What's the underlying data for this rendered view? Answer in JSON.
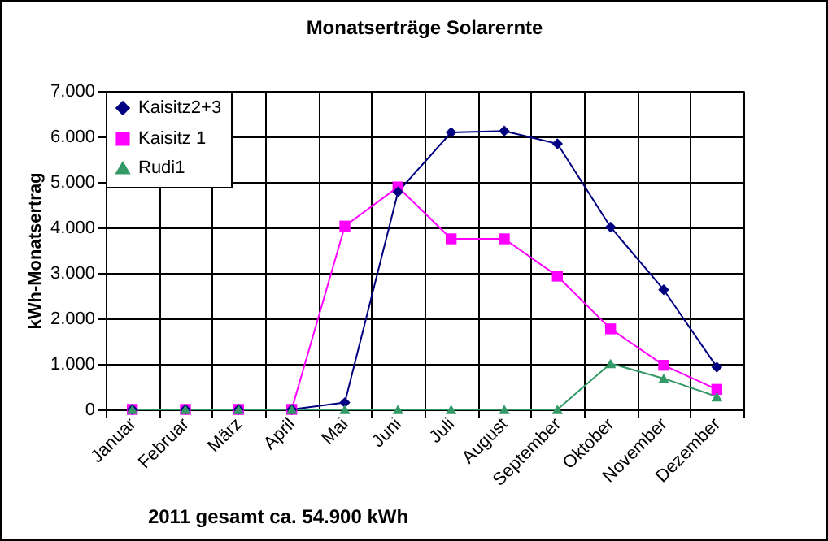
{
  "chart_data": {
    "type": "line",
    "title": "Monatserträge Solarernte",
    "ylabel": "kWh-Monatsertrag",
    "categories": [
      "Januar",
      "Februar",
      "März",
      "April",
      "Mai",
      "Juni",
      "Juli",
      "August",
      "September",
      "Oktober",
      "November",
      "Dezember"
    ],
    "series": [
      {
        "name": "Kaisitz2+3",
        "color": "#000080",
        "marker": "diamond",
        "values": [
          0,
          0,
          0,
          0,
          150,
          4780,
          6090,
          6120,
          5840,
          4010,
          2630,
          930
        ]
      },
      {
        "name": "Kaisitz 1",
        "color": "#ff00ff",
        "marker": "square",
        "values": [
          0,
          0,
          0,
          0,
          4030,
          4890,
          3750,
          3750,
          2930,
          1770,
          970,
          440
        ]
      },
      {
        "name": "Rudi1",
        "color": "#339966",
        "marker": "triangle",
        "values": [
          0,
          0,
          0,
          0,
          0,
          0,
          0,
          0,
          0,
          1010,
          680,
          280
        ]
      }
    ],
    "ylim": [
      0,
      7000
    ],
    "yticks": [
      {
        "value": 0,
        "label": "0"
      },
      {
        "value": 1000,
        "label": "1.000"
      },
      {
        "value": 2000,
        "label": "2.000"
      },
      {
        "value": 3000,
        "label": "3.000"
      },
      {
        "value": 4000,
        "label": "4.000"
      },
      {
        "value": 5000,
        "label": "5.000"
      },
      {
        "value": 6000,
        "label": "6.000"
      },
      {
        "value": 7000,
        "label": "7.000"
      }
    ],
    "grid": true,
    "legend": "top left",
    "line_style": "solid",
    "annotations": [
      "2011 gesamt ca. 54.900 kWh"
    ]
  }
}
